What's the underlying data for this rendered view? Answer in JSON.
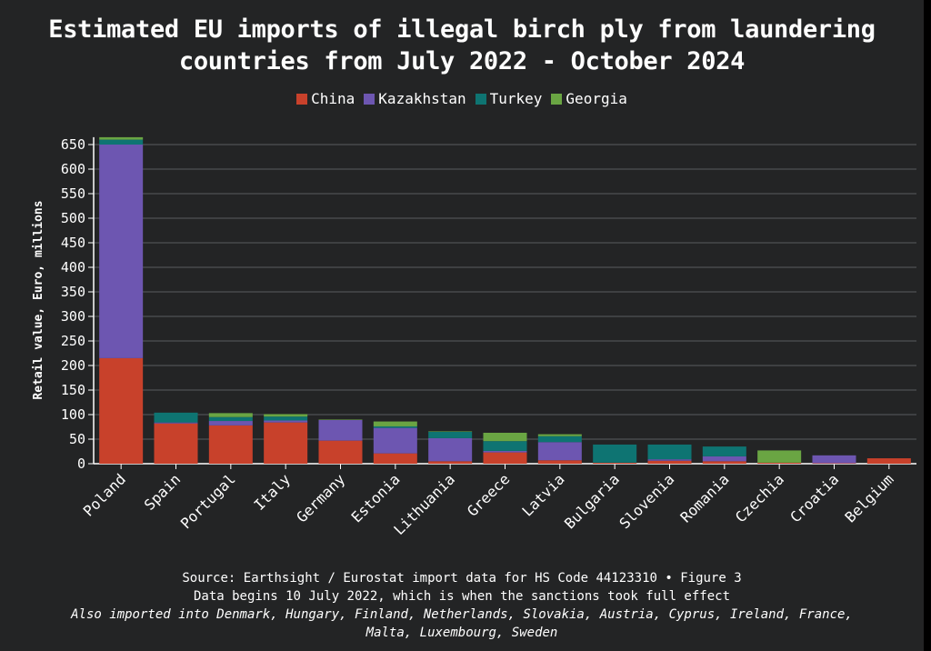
{
  "title_line1": "Estimated EU imports of illegal birch ply from laundering",
  "title_line2": "countries from July 2022 - October 2024",
  "footer": {
    "source": "Source: Earthsight / Eurostat import data for HS Code 44123310 • Figure 3",
    "note": "Data begins 10 July 2022, which is when the sanctions took full effect",
    "also_line1": "Also imported into Denmark, Hungary, Finland, Netherlands, Slovakia, Austria, Cyprus, Ireland, France,",
    "also_line2": "Malta, Luxembourg, Sweden"
  },
  "chart_data": {
    "type": "bar",
    "stacked": true,
    "title": "Estimated EU imports of illegal birch ply from laundering countries from July 2022 - October 2024",
    "xlabel": "",
    "ylabel": "Retail value, Euro, millions",
    "ylim": [
      0,
      665
    ],
    "yticks": [
      0,
      50,
      100,
      150,
      200,
      250,
      300,
      350,
      400,
      450,
      500,
      550,
      600,
      650
    ],
    "grid": true,
    "legend_position": "top-center",
    "categories": [
      "Poland",
      "Spain",
      "Portugal",
      "Italy",
      "Germany",
      "Estonia",
      "Lithuania",
      "Greece",
      "Latvia",
      "Bulgaria",
      "Slovenia",
      "Romania",
      "Czechia",
      "Croatia",
      "Belgium"
    ],
    "series": [
      {
        "name": "China",
        "color": "#c8412b",
        "values": [
          215,
          82,
          78,
          84,
          47,
          21,
          5,
          23,
          7,
          2,
          6,
          5,
          2,
          1,
          11
        ]
      },
      {
        "name": "Kazakhstan",
        "color": "#6d56b1",
        "values": [
          435,
          2,
          9,
          4,
          42,
          52,
          47,
          3,
          37,
          0,
          3,
          10,
          0,
          16,
          0
        ]
      },
      {
        "name": "Turkey",
        "color": "#0e7472",
        "values": [
          10,
          20,
          8,
          8,
          0,
          3,
          13,
          20,
          12,
          37,
          30,
          20,
          0,
          0,
          0
        ]
      },
      {
        "name": "Georgia",
        "color": "#6aa543",
        "values": [
          5,
          0,
          8,
          5,
          1,
          10,
          1,
          17,
          4,
          0,
          0,
          0,
          25,
          0,
          0
        ]
      }
    ]
  }
}
